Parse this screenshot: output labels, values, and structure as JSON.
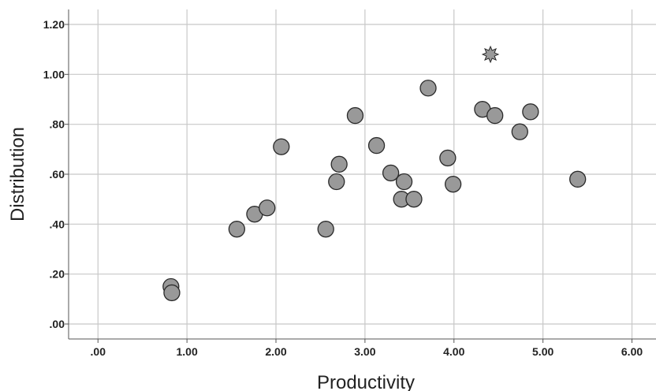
{
  "chart_data": {
    "type": "scatter",
    "xlabel": "Productivity",
    "ylabel": "Distribution",
    "xlim": [
      -0.33,
      6.27
    ],
    "ylim": [
      -0.06,
      1.26
    ],
    "x_ticks": [
      ".00",
      "1.00",
      "2.00",
      "3.00",
      "4.00",
      "5.00",
      "6.00"
    ],
    "x_tick_values": [
      0,
      1,
      2,
      3,
      4,
      5,
      6
    ],
    "y_ticks": [
      ".00",
      ".20",
      ".40",
      ".60",
      ".80",
      "1.00",
      "1.20"
    ],
    "y_tick_values": [
      0,
      0.2,
      0.4,
      0.6,
      0.8,
      1.0,
      1.2
    ],
    "grid": true,
    "marker_color": "#999999",
    "edge_color": "#2a2a2a",
    "points": [
      {
        "x": 0.82,
        "y": 0.15
      },
      {
        "x": 0.83,
        "y": 0.125
      },
      {
        "x": 1.56,
        "y": 0.38
      },
      {
        "x": 1.76,
        "y": 0.44
      },
      {
        "x": 1.9,
        "y": 0.465
      },
      {
        "x": 2.06,
        "y": 0.71
      },
      {
        "x": 2.56,
        "y": 0.38
      },
      {
        "x": 2.68,
        "y": 0.57
      },
      {
        "x": 2.71,
        "y": 0.64
      },
      {
        "x": 2.89,
        "y": 0.835
      },
      {
        "x": 3.13,
        "y": 0.715
      },
      {
        "x": 3.29,
        "y": 0.605
      },
      {
        "x": 3.41,
        "y": 0.5
      },
      {
        "x": 3.44,
        "y": 0.57
      },
      {
        "x": 3.55,
        "y": 0.5
      },
      {
        "x": 3.71,
        "y": 0.945
      },
      {
        "x": 3.93,
        "y": 0.665
      },
      {
        "x": 3.99,
        "y": 0.56
      },
      {
        "x": 4.32,
        "y": 0.86
      },
      {
        "x": 4.46,
        "y": 0.835
      },
      {
        "x": 4.74,
        "y": 0.77
      },
      {
        "x": 4.86,
        "y": 0.85
      },
      {
        "x": 5.39,
        "y": 0.58
      }
    ],
    "outliers": [
      {
        "x": 4.41,
        "y": 1.08,
        "marker": "star"
      }
    ]
  }
}
